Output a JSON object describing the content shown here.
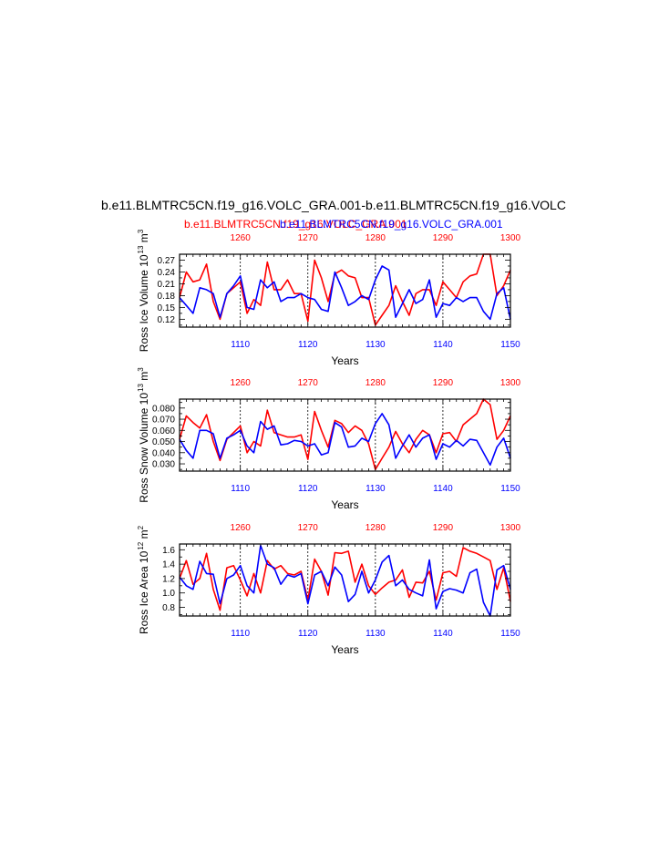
{
  "figure": {
    "title": "b.e11.BLMTRC5CN.f19_g16.VOLC_GRA.001-b.e11.BLMTRC5CN.f19_g16.VOLC",
    "subtitle_red": "b.e11.BLMTRC5CN.f19_g16.VOLC_GRA.001",
    "subtitle_blue": "b.e11.BLMTRC5CN.f19_g16.VOLC_GRA.001"
  },
  "colors": {
    "red": "#ff0000",
    "blue": "#0000ff",
    "axis": "#000000",
    "grid": "#000000"
  },
  "chart_data": [
    {
      "type": "line",
      "ylabel": "Ross Ice Volume 10^13 m^3",
      "ylabel_main": "Ross Ice Volume 10",
      "ylabel_exp": "13",
      "ylabel_unit": "m",
      "ylabel_unit_exp": "3",
      "xlabel": "Years",
      "ylim": [
        0.1,
        0.285
      ],
      "yticks": [
        0.12,
        0.15,
        0.18,
        0.21,
        0.24,
        0.27
      ],
      "ytick_labels": [
        "0.12",
        "0.15",
        "0.18",
        "0.21",
        "0.24",
        "0.27"
      ],
      "grid": "vertical dashed lines at bottom-axis ticks",
      "x_bottom": {
        "range": [
          1101,
          1150
        ],
        "ticks": [
          1110,
          1120,
          1130,
          1140,
          1150
        ],
        "labels": [
          "1110",
          "1120",
          "1130",
          "1140",
          "1150"
        ]
      },
      "x_top": {
        "range": [
          1251,
          1300
        ],
        "ticks": [
          1260,
          1270,
          1280,
          1290,
          1300
        ],
        "labels": [
          "1260",
          "1270",
          "1280",
          "1290",
          "1300"
        ]
      },
      "series": [
        {
          "color": "red",
          "axis": "top",
          "x_start": 1251,
          "values": [
            0.175,
            0.24,
            0.215,
            0.22,
            0.26,
            0.165,
            0.12,
            0.185,
            0.2,
            0.215,
            0.135,
            0.17,
            0.155,
            0.265,
            0.195,
            0.195,
            0.22,
            0.185,
            0.185,
            0.115,
            0.27,
            0.225,
            0.165,
            0.235,
            0.245,
            0.23,
            0.225,
            0.175,
            0.175,
            0.105,
            0.13,
            0.155,
            0.205,
            0.165,
            0.13,
            0.185,
            0.195,
            0.195,
            0.155,
            0.215,
            0.195,
            0.175,
            0.215,
            0.23,
            0.235,
            0.29,
            0.29,
            0.18,
            0.205,
            0.245
          ]
        },
        {
          "color": "blue",
          "axis": "bottom",
          "x_start": 1101,
          "values": [
            0.175,
            0.155,
            0.135,
            0.2,
            0.195,
            0.185,
            0.125,
            0.185,
            0.205,
            0.23,
            0.15,
            0.145,
            0.22,
            0.2,
            0.215,
            0.165,
            0.175,
            0.175,
            0.185,
            0.175,
            0.17,
            0.145,
            0.14,
            0.24,
            0.2,
            0.155,
            0.165,
            0.18,
            0.17,
            0.22,
            0.255,
            0.245,
            0.125,
            0.16,
            0.195,
            0.16,
            0.17,
            0.22,
            0.125,
            0.16,
            0.155,
            0.175,
            0.165,
            0.175,
            0.175,
            0.14,
            0.12,
            0.185,
            0.2,
            0.12
          ]
        }
      ]
    },
    {
      "type": "line",
      "ylabel": "Ross Snow Volume 10^13 m^3",
      "ylabel_main": "Ross Snow Volume 10",
      "ylabel_exp": "13",
      "ylabel_unit": "m",
      "ylabel_unit_exp": "3",
      "xlabel": "Years",
      "ylim": [
        0.0235,
        0.088
      ],
      "yticks": [
        0.03,
        0.04,
        0.05,
        0.06,
        0.07,
        0.08
      ],
      "ytick_labels": [
        "0.030",
        "0.040",
        "0.050",
        "0.060",
        "0.070",
        "0.080"
      ],
      "grid": "vertical dashed lines at bottom-axis ticks",
      "x_bottom": {
        "range": [
          1101,
          1150
        ],
        "ticks": [
          1110,
          1120,
          1130,
          1140,
          1150
        ],
        "labels": [
          "1110",
          "1120",
          "1130",
          "1140",
          "1150"
        ]
      },
      "x_top": {
        "range": [
          1251,
          1300
        ],
        "ticks": [
          1260,
          1270,
          1280,
          1290,
          1300
        ],
        "labels": [
          "1260",
          "1270",
          "1280",
          "1290",
          "1300"
        ]
      },
      "series": [
        {
          "color": "red",
          "axis": "top",
          "x_start": 1251,
          "values": [
            0.052,
            0.073,
            0.067,
            0.062,
            0.074,
            0.05,
            0.033,
            0.052,
            0.058,
            0.064,
            0.04,
            0.05,
            0.046,
            0.078,
            0.058,
            0.056,
            0.054,
            0.054,
            0.056,
            0.034,
            0.077,
            0.06,
            0.045,
            0.069,
            0.066,
            0.058,
            0.064,
            0.06,
            0.048,
            0.025,
            0.035,
            0.045,
            0.059,
            0.048,
            0.04,
            0.052,
            0.06,
            0.056,
            0.04,
            0.057,
            0.058,
            0.05,
            0.065,
            0.07,
            0.075,
            0.088,
            0.083,
            0.052,
            0.06,
            0.073
          ]
        },
        {
          "color": "blue",
          "axis": "bottom",
          "x_start": 1101,
          "values": [
            0.052,
            0.042,
            0.035,
            0.06,
            0.06,
            0.057,
            0.035,
            0.053,
            0.056,
            0.06,
            0.046,
            0.04,
            0.068,
            0.061,
            0.064,
            0.047,
            0.048,
            0.051,
            0.05,
            0.046,
            0.048,
            0.038,
            0.04,
            0.067,
            0.063,
            0.045,
            0.046,
            0.053,
            0.05,
            0.066,
            0.075,
            0.065,
            0.035,
            0.046,
            0.056,
            0.045,
            0.053,
            0.056,
            0.034,
            0.048,
            0.045,
            0.051,
            0.046,
            0.052,
            0.051,
            0.04,
            0.029,
            0.045,
            0.053,
            0.035
          ]
        }
      ]
    },
    {
      "type": "line",
      "ylabel": "Ross Ice Area 10^12 m^2",
      "ylabel_main": "Ross Ice Area 10",
      "ylabel_exp": "12",
      "ylabel_unit": "m",
      "ylabel_unit_exp": "2",
      "xlabel": "Years",
      "ylim": [
        0.68,
        1.68
      ],
      "yticks": [
        0.8,
        1.0,
        1.2,
        1.4,
        1.6
      ],
      "ytick_labels": [
        "0.8",
        "1.0",
        "1.2",
        "1.4",
        "1.6"
      ],
      "grid": "vertical dashed lines at bottom-axis ticks",
      "x_bottom": {
        "range": [
          1101,
          1150
        ],
        "ticks": [
          1110,
          1120,
          1130,
          1140,
          1150
        ],
        "labels": [
          "1110",
          "1120",
          "1130",
          "1140",
          "1150"
        ]
      },
      "x_top": {
        "range": [
          1251,
          1300
        ],
        "ticks": [
          1260,
          1270,
          1280,
          1290,
          1300
        ],
        "labels": [
          "1260",
          "1270",
          "1280",
          "1290",
          "1300"
        ]
      },
      "series": [
        {
          "color": "red",
          "axis": "top",
          "x_start": 1251,
          "values": [
            1.2,
            1.45,
            1.12,
            1.2,
            1.55,
            1.05,
            0.76,
            1.35,
            1.38,
            1.18,
            0.96,
            1.27,
            1.0,
            1.45,
            1.33,
            1.38,
            1.27,
            1.25,
            1.3,
            0.9,
            1.47,
            1.3,
            0.97,
            1.56,
            1.55,
            1.58,
            1.15,
            1.4,
            1.1,
            0.98,
            1.07,
            1.15,
            1.18,
            1.32,
            0.94,
            1.15,
            1.14,
            1.3,
            0.9,
            1.28,
            1.3,
            1.23,
            1.63,
            1.58,
            1.55,
            1.5,
            1.45,
            1.05,
            1.35,
            0.88
          ]
        },
        {
          "color": "blue",
          "axis": "bottom",
          "x_start": 1101,
          "values": [
            1.22,
            1.1,
            1.05,
            1.44,
            1.27,
            1.26,
            0.85,
            1.2,
            1.25,
            1.38,
            1.1,
            1.0,
            1.66,
            1.4,
            1.35,
            1.12,
            1.25,
            1.22,
            1.27,
            0.85,
            1.25,
            1.3,
            1.1,
            1.36,
            1.25,
            0.88,
            0.98,
            1.3,
            1.0,
            1.18,
            1.43,
            1.52,
            1.1,
            1.18,
            1.05,
            1.0,
            0.96,
            1.46,
            0.78,
            1.02,
            1.06,
            1.04,
            1.0,
            1.28,
            1.33,
            0.87,
            0.68,
            1.32,
            1.38,
            1.05
          ]
        }
      ]
    }
  ]
}
